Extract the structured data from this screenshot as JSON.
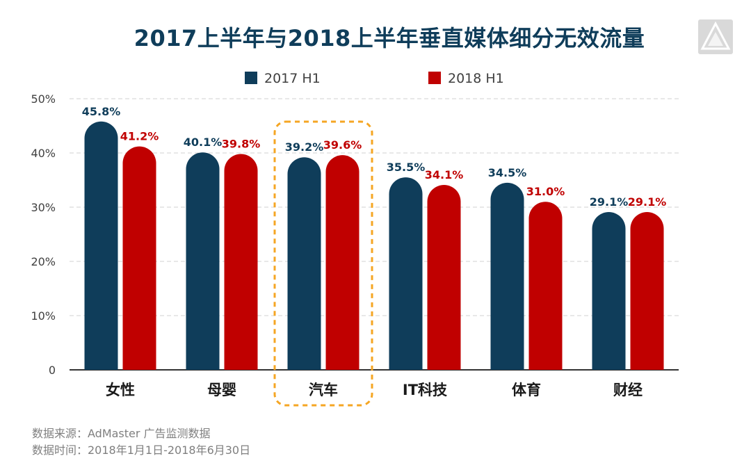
{
  "title": "2017上半年与2018上半年垂直媒体细分无效流量",
  "logo": {
    "icon": "admaster-logo-icon"
  },
  "footer": {
    "source": "数据来源：AdMaster 广告监测数据",
    "period": "数据时间：2018年1月1日-2018年6月30日"
  },
  "colors": {
    "series_2017": "#0f3d5a",
    "series_2018": "#c00000",
    "highlight": "#f5a623"
  },
  "chart_data": {
    "type": "bar",
    "categories": [
      "女性",
      "母婴",
      "汽车",
      "IT科技",
      "体育",
      "财经"
    ],
    "series": [
      {
        "name": "2017 H1",
        "values": [
          45.8,
          40.1,
          39.2,
          35.5,
          34.5,
          29.1
        ],
        "labels": [
          "45.8%",
          "40.1%",
          "39.2%",
          "35.5%",
          "34.5%",
          "29.1%"
        ]
      },
      {
        "name": "2018 H1",
        "values": [
          41.2,
          39.8,
          39.6,
          34.1,
          31.0,
          29.1
        ],
        "labels": [
          "41.2%",
          "39.8%",
          "39.6%",
          "34.1%",
          "31.0%",
          "29.1%"
        ]
      }
    ],
    "yticks": [
      "0",
      "10%",
      "20%",
      "30%",
      "40%",
      "50%"
    ],
    "ylim": [
      0,
      50
    ],
    "grid": true,
    "legend": "top-center",
    "highlight_category": "汽车"
  }
}
